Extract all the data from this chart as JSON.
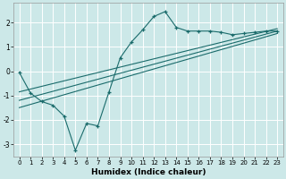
{
  "xlabel": "Humidex (Indice chaleur)",
  "background_color": "#cce8e8",
  "grid_color": "#ffffff",
  "line_color": "#1a6b6b",
  "xlim": [
    -0.5,
    23.5
  ],
  "ylim": [
    -3.5,
    2.8
  ],
  "x_main": [
    0,
    1,
    2,
    3,
    4,
    5,
    6,
    7,
    8,
    9,
    10,
    11,
    12,
    13,
    14,
    15,
    16,
    17,
    18,
    19,
    20,
    21,
    22,
    23
  ],
  "y_main": [
    -0.05,
    -0.9,
    -1.25,
    -1.4,
    -1.85,
    -3.25,
    -2.15,
    -2.25,
    -0.85,
    0.55,
    1.2,
    1.7,
    2.25,
    2.45,
    1.8,
    1.65,
    1.65,
    1.65,
    1.6,
    1.5,
    1.55,
    1.6,
    1.65,
    1.65
  ],
  "line1_x": [
    0,
    23
  ],
  "line1_y": [
    -0.85,
    1.75
  ],
  "line2_x": [
    0,
    23
  ],
  "line2_y": [
    -1.2,
    1.65
  ],
  "line3_x": [
    0,
    23
  ],
  "line3_y": [
    -1.5,
    1.55
  ],
  "yticks": [
    -3,
    -2,
    -1,
    0,
    1,
    2
  ],
  "xticks": [
    0,
    1,
    2,
    3,
    4,
    5,
    6,
    7,
    8,
    9,
    10,
    11,
    12,
    13,
    14,
    15,
    16,
    17,
    18,
    19,
    20,
    21,
    22,
    23
  ]
}
